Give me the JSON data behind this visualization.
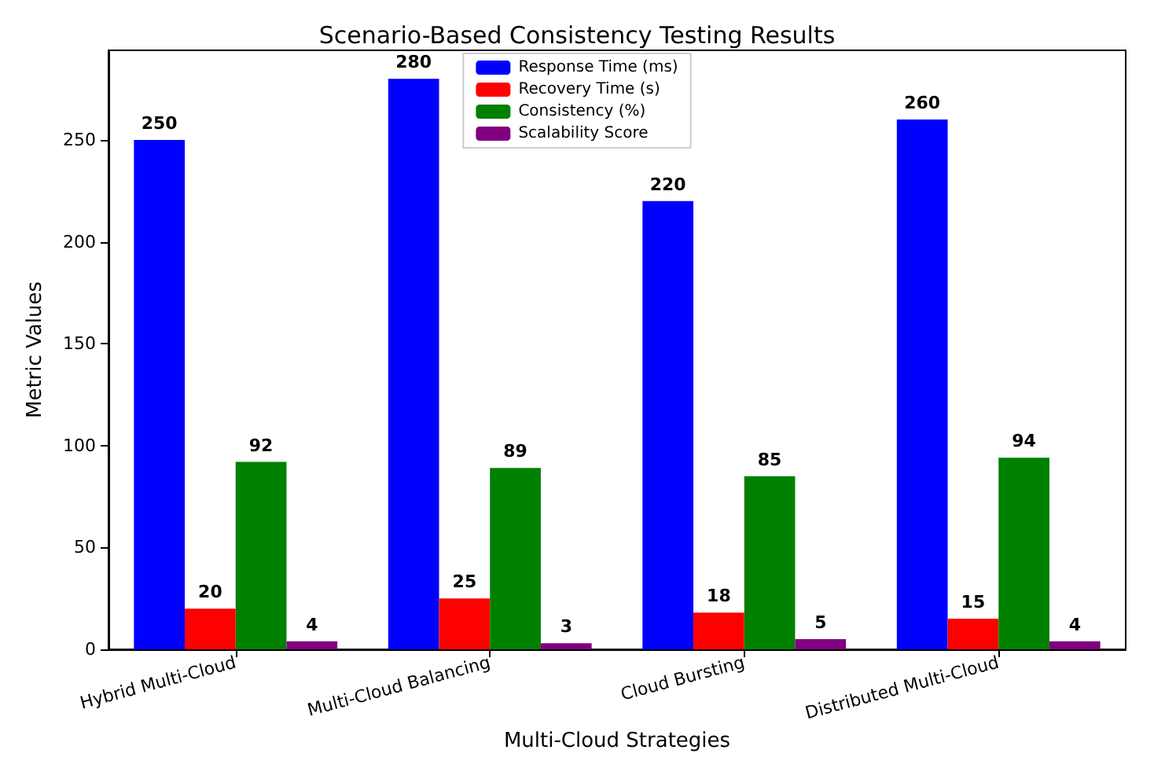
{
  "chart_data": {
    "type": "bar",
    "title": "Scenario-Based Consistency Testing Results",
    "xlabel": "Multi-Cloud Strategies",
    "ylabel": "Metric Values",
    "categories": [
      "Hybrid Multi-Cloud",
      "Multi-Cloud Balancing",
      "Cloud Bursting",
      "Distributed Multi-Cloud"
    ],
    "series": [
      {
        "name": "Response Time (ms)",
        "color": "#0000ff",
        "values": [
          250,
          280,
          220,
          260
        ]
      },
      {
        "name": "Recovery Time (s)",
        "color": "#ff0000",
        "values": [
          20,
          25,
          18,
          15
        ]
      },
      {
        "name": "Consistency (%)",
        "color": "#008000",
        "values": [
          92,
          89,
          85,
          94
        ]
      },
      {
        "name": "Scalability Score",
        "color": "#800080",
        "values": [
          4,
          3,
          5,
          4
        ]
      }
    ],
    "ylim": [
      0,
      294
    ],
    "yticks": [
      0,
      50,
      100,
      150,
      200,
      250
    ],
    "grid": false,
    "legend": "top",
    "data_labels": true
  }
}
